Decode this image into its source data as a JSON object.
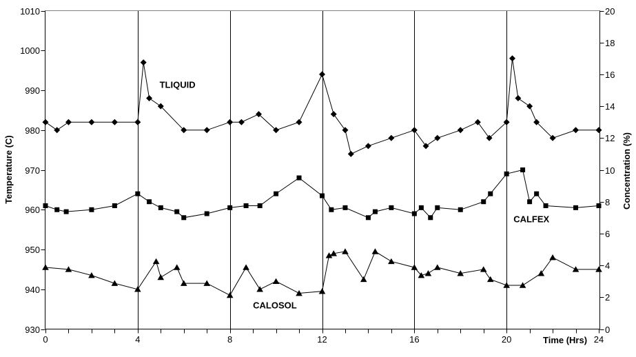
{
  "chart_data": {
    "type": "line",
    "title": "",
    "xlabel": "Time (Hrs)",
    "ylabel_left": "Temperature (C)",
    "ylabel_right": "Concentration (%)",
    "x_range": [
      0,
      24
    ],
    "x_tick_labels": [
      0,
      4,
      8,
      12,
      16,
      20,
      24
    ],
    "x_minor_tick_step": 1,
    "y_left_range": [
      930,
      1010
    ],
    "y_left_ticks": [
      930,
      940,
      950,
      960,
      970,
      980,
      990,
      1000,
      1010
    ],
    "y_right_range": [
      0,
      20
    ],
    "y_right_ticks": [
      0,
      2,
      4,
      6,
      8,
      10,
      12,
      14,
      16,
      18,
      20
    ],
    "gridlines_x": [
      4,
      8,
      12,
      16,
      20
    ],
    "grid": "vertical-only",
    "legend_position": "inline-labels",
    "axis_color": "#000000",
    "top_border_color": "#808080",
    "background_color": "#ffffff",
    "series": [
      {
        "name": "TLIQUID",
        "marker": "diamond",
        "color": "#000000",
        "axis": "left",
        "label_at": [
          4.95,
          990.6
        ],
        "points": [
          [
            0,
            982
          ],
          [
            0.5,
            980
          ],
          [
            1,
            982
          ],
          [
            2,
            982
          ],
          [
            3,
            982
          ],
          [
            4,
            982
          ],
          [
            4.25,
            997
          ],
          [
            4.5,
            988
          ],
          [
            5,
            986
          ],
          [
            6,
            980
          ],
          [
            7,
            980
          ],
          [
            8,
            982
          ],
          [
            8.5,
            982
          ],
          [
            9.25,
            984
          ],
          [
            10,
            980
          ],
          [
            11,
            982
          ],
          [
            12,
            994
          ],
          [
            12.5,
            984
          ],
          [
            13,
            980
          ],
          [
            13.25,
            974
          ],
          [
            14,
            976
          ],
          [
            15,
            978
          ],
          [
            16,
            980
          ],
          [
            16.5,
            976
          ],
          [
            17,
            978
          ],
          [
            18,
            980
          ],
          [
            18.75,
            982
          ],
          [
            19.25,
            978
          ],
          [
            20,
            982
          ],
          [
            20.25,
            998
          ],
          [
            20.5,
            988
          ],
          [
            21,
            986
          ],
          [
            21.3,
            982
          ],
          [
            22,
            978
          ],
          [
            23,
            980
          ],
          [
            24,
            980
          ]
        ]
      },
      {
        "name": "CALFEX",
        "marker": "square",
        "color": "#000000",
        "axis": "left",
        "label_at": [
          20.3,
          956.8
        ],
        "points": [
          [
            0,
            961
          ],
          [
            0.5,
            960
          ],
          [
            0.9,
            959.5
          ],
          [
            2,
            960
          ],
          [
            3,
            961
          ],
          [
            4,
            964
          ],
          [
            4.5,
            962
          ],
          [
            5,
            960.5
          ],
          [
            5.7,
            959.5
          ],
          [
            6,
            958
          ],
          [
            7,
            959
          ],
          [
            8,
            960.5
          ],
          [
            8.7,
            961
          ],
          [
            9.3,
            961
          ],
          [
            10,
            964
          ],
          [
            11,
            968
          ],
          [
            12,
            963.5
          ],
          [
            12.4,
            960
          ],
          [
            13,
            960.5
          ],
          [
            14,
            958
          ],
          [
            14.3,
            959.5
          ],
          [
            15,
            960.5
          ],
          [
            16,
            959
          ],
          [
            16.3,
            960.5
          ],
          [
            16.7,
            958
          ],
          [
            17,
            960.5
          ],
          [
            18,
            960
          ],
          [
            19,
            962
          ],
          [
            19.3,
            964
          ],
          [
            20,
            969
          ],
          [
            20.7,
            970
          ],
          [
            21,
            962
          ],
          [
            21.3,
            964
          ],
          [
            21.7,
            961
          ],
          [
            23,
            960.5
          ],
          [
            24,
            961
          ]
        ]
      },
      {
        "name": "CALOSOL",
        "marker": "triangle",
        "color": "#000000",
        "axis": "left",
        "label_at": [
          9.0,
          935.2
        ],
        "points": [
          [
            0,
            945.5
          ],
          [
            1,
            945
          ],
          [
            2,
            943.5
          ],
          [
            3,
            941.5
          ],
          [
            4,
            940
          ],
          [
            4.8,
            947
          ],
          [
            5,
            943
          ],
          [
            5.7,
            945.5
          ],
          [
            6,
            941.5
          ],
          [
            7,
            941.5
          ],
          [
            8,
            938.5
          ],
          [
            8.7,
            945.5
          ],
          [
            9.3,
            940
          ],
          [
            10,
            942
          ],
          [
            11,
            939
          ],
          [
            12,
            939.5
          ],
          [
            12.3,
            948.5
          ],
          [
            12.5,
            949
          ],
          [
            13,
            949.5
          ],
          [
            13.8,
            942.5
          ],
          [
            14.3,
            949.5
          ],
          [
            15,
            947
          ],
          [
            16,
            945.5
          ],
          [
            16.3,
            943.5
          ],
          [
            16.6,
            944
          ],
          [
            17,
            945.5
          ],
          [
            18,
            944
          ],
          [
            19,
            945
          ],
          [
            19.3,
            942.5
          ],
          [
            20,
            941
          ],
          [
            20.7,
            941
          ],
          [
            21.5,
            944
          ],
          [
            22,
            948
          ],
          [
            23,
            945
          ],
          [
            24,
            945
          ]
        ]
      }
    ]
  }
}
